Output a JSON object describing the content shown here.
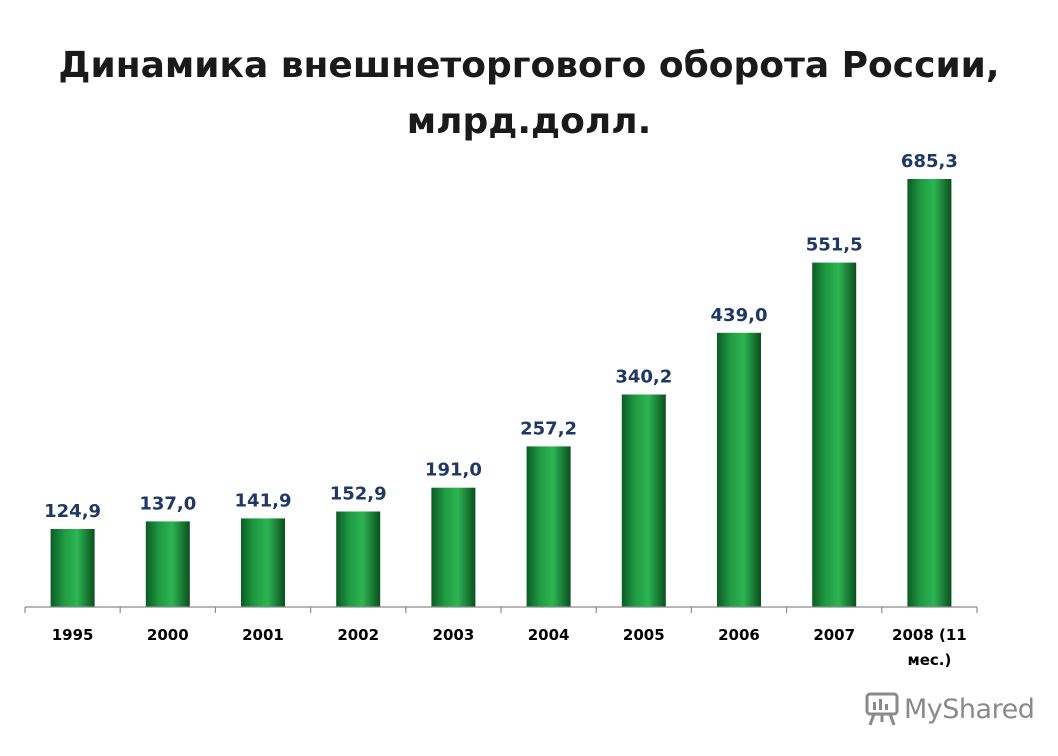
{
  "chart_data": {
    "type": "bar",
    "title_lines": [
      "Динамика внешнеторгового оборота России,",
      "млрд.долл."
    ],
    "categories": [
      "1995",
      "2000",
      "2001",
      "2002",
      "2003",
      "2004",
      "2005",
      "2006",
      "2007",
      "2008 (11 мес.)"
    ],
    "category_lines": [
      [
        "1995"
      ],
      [
        "2000"
      ],
      [
        "2001"
      ],
      [
        "2002"
      ],
      [
        "2003"
      ],
      [
        "2004"
      ],
      [
        "2005"
      ],
      [
        "2006"
      ],
      [
        "2007"
      ],
      [
        "2008 (11",
        "мес.)"
      ]
    ],
    "values": [
      124.9,
      137.0,
      141.9,
      152.9,
      191.0,
      257.2,
      340.2,
      439.0,
      551.5,
      685.3
    ],
    "data_labels": [
      "124,9",
      "137,0",
      "141,9",
      "152,9",
      "191,0",
      "257,2",
      "340,2",
      "439,0",
      "551,5",
      "685,3"
    ],
    "ylim": [
      0,
      685.3
    ],
    "grid": false,
    "legend": "none",
    "colors": {
      "bar_dark": "#0a5a22",
      "bar_mid": "#1e9e40",
      "bar_light": "#2cb34f",
      "data_label": "#1f3864",
      "axis": "#8c8c8c",
      "tick_label": "#000000"
    }
  },
  "watermark": {
    "text": "MyShared",
    "icon": "presentation-board-icon"
  }
}
